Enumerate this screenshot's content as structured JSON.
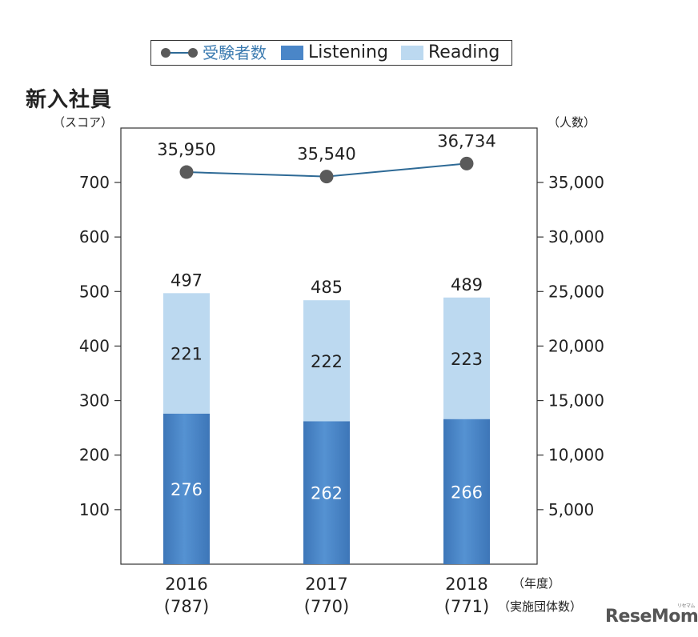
{
  "title": "新入社員",
  "left_unit": "（スコア）",
  "right_unit": "（人数）",
  "x_unit": "（年度）",
  "x_sub_unit": "（実施団体数）",
  "watermark": "ReseMom",
  "watermark_sub": "リセマム",
  "legend": {
    "line": "受験者数",
    "listening": "Listening",
    "reading": "Reading"
  },
  "colors": {
    "listening": "#4a86c8",
    "reading": "#bcd9f0",
    "line": "#2e6a96",
    "marker": "#5a5a5a",
    "legend_line_text": "#3a7ab0"
  },
  "chart_data": {
    "type": "bar",
    "stacked": true,
    "categories": [
      "2016",
      "2017",
      "2018"
    ],
    "category_sublabels": [
      "(787)",
      "(770)",
      "(771)"
    ],
    "series": [
      {
        "name": "Listening",
        "values": [
          276,
          262,
          266
        ]
      },
      {
        "name": "Reading",
        "values": [
          221,
          222,
          223
        ]
      }
    ],
    "totals": [
      497,
      485,
      489
    ],
    "secondary_series": {
      "name": "受験者数",
      "type": "line",
      "values": [
        35950,
        35540,
        36734
      ],
      "labels": [
        "35,950",
        "35,540",
        "36,734"
      ]
    },
    "y_left": {
      "min": 0,
      "max": 700,
      "ticks": [
        100,
        200,
        300,
        400,
        500,
        600,
        700
      ]
    },
    "y_right": {
      "min": 0,
      "max": 35000,
      "ticks": [
        5000,
        10000,
        15000,
        20000,
        25000,
        30000,
        35000
      ],
      "tick_labels": [
        "5,000",
        "10,000",
        "15,000",
        "20,000",
        "25,000",
        "30,000",
        "35,000"
      ]
    },
    "grid": false,
    "legend_position": "top"
  }
}
